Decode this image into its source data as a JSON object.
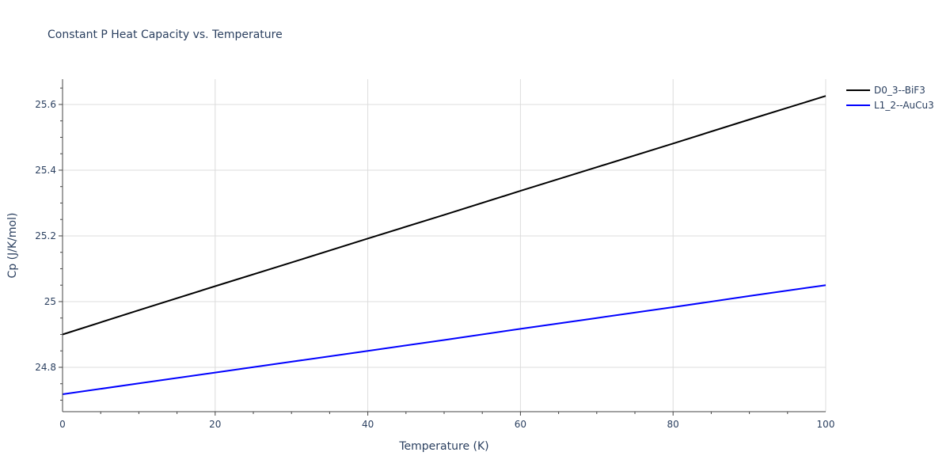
{
  "chart_data": {
    "type": "line",
    "title": "Constant P Heat Capacity vs. Temperature",
    "xlabel": "Temperature (K)",
    "ylabel": "Cp (J/K/mol)",
    "xlim": [
      0,
      100
    ],
    "ylim": [
      24.665,
      25.677
    ],
    "x_ticks": [
      0,
      20,
      40,
      60,
      80,
      100
    ],
    "x_tick_labels": [
      "0",
      "20",
      "40",
      "60",
      "80",
      "100"
    ],
    "y_ticks": [
      24.8,
      25.0,
      25.2,
      25.4,
      25.6
    ],
    "y_tick_labels": [
      "24.8",
      "25",
      "25.2",
      "25.4",
      "25.6"
    ],
    "grid": true,
    "legend_position": "top-right",
    "series": [
      {
        "name": "D0_3--BiF3",
        "color": "#000000",
        "x": [
          0,
          10,
          20,
          30,
          40,
          50,
          60,
          70,
          80,
          90,
          100
        ],
        "y": [
          24.9,
          24.974,
          25.047,
          25.119,
          25.192,
          25.264,
          25.337,
          25.409,
          25.481,
          25.554,
          25.626
        ]
      },
      {
        "name": "L1_2--AuCu3",
        "color": "#0000ff",
        "x": [
          0,
          10,
          20,
          30,
          40,
          50,
          60,
          70,
          80,
          90,
          100
        ],
        "y": [
          24.718,
          24.751,
          24.784,
          24.817,
          24.85,
          24.883,
          24.917,
          24.95,
          24.983,
          25.017,
          25.05
        ]
      }
    ]
  }
}
